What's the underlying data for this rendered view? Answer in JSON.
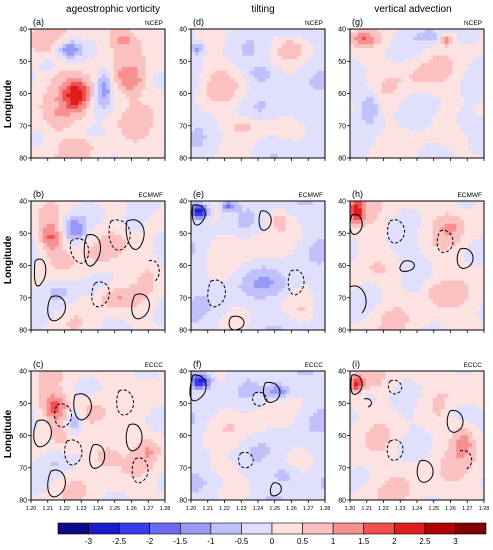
{
  "figure": {
    "column_titles": [
      "ageostrophic vorticity",
      "tilting",
      "vertical advection"
    ],
    "row_label": "Longitude",
    "dataset_labels": [
      "NCEP",
      "ECMWF",
      "ECCC"
    ]
  },
  "chart_data": {
    "type": "heatmap",
    "panels": [
      {
        "label": "(a)",
        "dataset": "NCEP",
        "field": "ageostrophic vorticity",
        "contours": false
      },
      {
        "label": "(d)",
        "dataset": "NCEP",
        "field": "tilting",
        "contours": false
      },
      {
        "label": "(g)",
        "dataset": "NCEP",
        "field": "vertical advection",
        "contours": false
      },
      {
        "label": "(b)",
        "dataset": "ECMWF",
        "field": "ageostrophic vorticity",
        "contours": true
      },
      {
        "label": "(e)",
        "dataset": "ECMWF",
        "field": "tilting",
        "contours": true
      },
      {
        "label": "(h)",
        "dataset": "ECMWF",
        "field": "vertical advection",
        "contours": true
      },
      {
        "label": "(c)",
        "dataset": "ECCC",
        "field": "ageostrophic vorticity",
        "contours": true
      },
      {
        "label": "(f)",
        "dataset": "ECCC",
        "field": "tilting",
        "contours": true
      },
      {
        "label": "(i)",
        "dataset": "ECCC",
        "field": "vertical advection",
        "contours": true
      }
    ],
    "y_ticks": [
      "40",
      "50",
      "60",
      "70",
      "80"
    ],
    "ylim": [
      40,
      80
    ],
    "x_ticks": [
      "1.20",
      "1.21",
      "1.22",
      "1.23",
      "1.24",
      "1.25",
      "1.26",
      "1.27",
      "1.28"
    ],
    "ylabel": "Longitude",
    "colorbar": {
      "labels": [
        "-3",
        "-2.5",
        "-2",
        "-1.5",
        "-1",
        "-0.5",
        "0",
        "0.5",
        "1",
        "1.5",
        "2",
        "2.5",
        "3"
      ],
      "colors": [
        "#0a0a85",
        "#1c1ccf",
        "#3a3aef",
        "#6a6af5",
        "#9898f8",
        "#c0c0fb",
        "#e0e0fd",
        "#fde2e2",
        "#fbc0c0",
        "#f79090",
        "#f05050",
        "#e01c1c",
        "#b00000",
        "#800000"
      ]
    }
  }
}
